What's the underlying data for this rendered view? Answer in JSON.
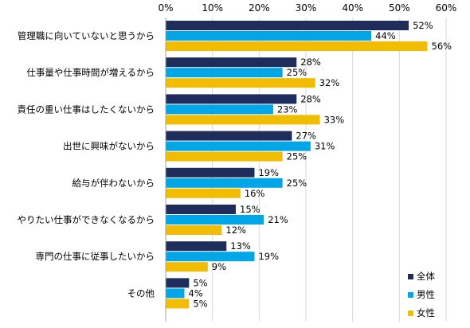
{
  "chart_data": {
    "type": "bar",
    "orientation": "horizontal",
    "xlim": [
      0,
      60
    ],
    "x_ticks": [
      "0%",
      "10%",
      "20%",
      "30%",
      "40%",
      "50%",
      "60%"
    ],
    "grid": true,
    "legend_position": "bottom-right",
    "value_suffix": "%",
    "categories": [
      "管理職に向いていないと思うから",
      "仕事量や仕事時間が増えるから",
      "責任の重い仕事はしたくないから",
      "出世に興味がないから",
      "給与が伴わないから",
      "やりたい仕事ができなくなるから",
      "専門の仕事に従事したいから",
      "その他"
    ],
    "series": [
      {
        "name": "全体",
        "color": "#1f2d5c",
        "values": [
          52,
          28,
          28,
          27,
          19,
          15,
          13,
          5
        ]
      },
      {
        "name": "男性",
        "color": "#00a6e6",
        "values": [
          44,
          25,
          23,
          31,
          25,
          21,
          19,
          4
        ]
      },
      {
        "name": "女性",
        "color": "#f2bd00",
        "values": [
          56,
          32,
          33,
          25,
          16,
          12,
          9,
          5
        ]
      }
    ]
  }
}
